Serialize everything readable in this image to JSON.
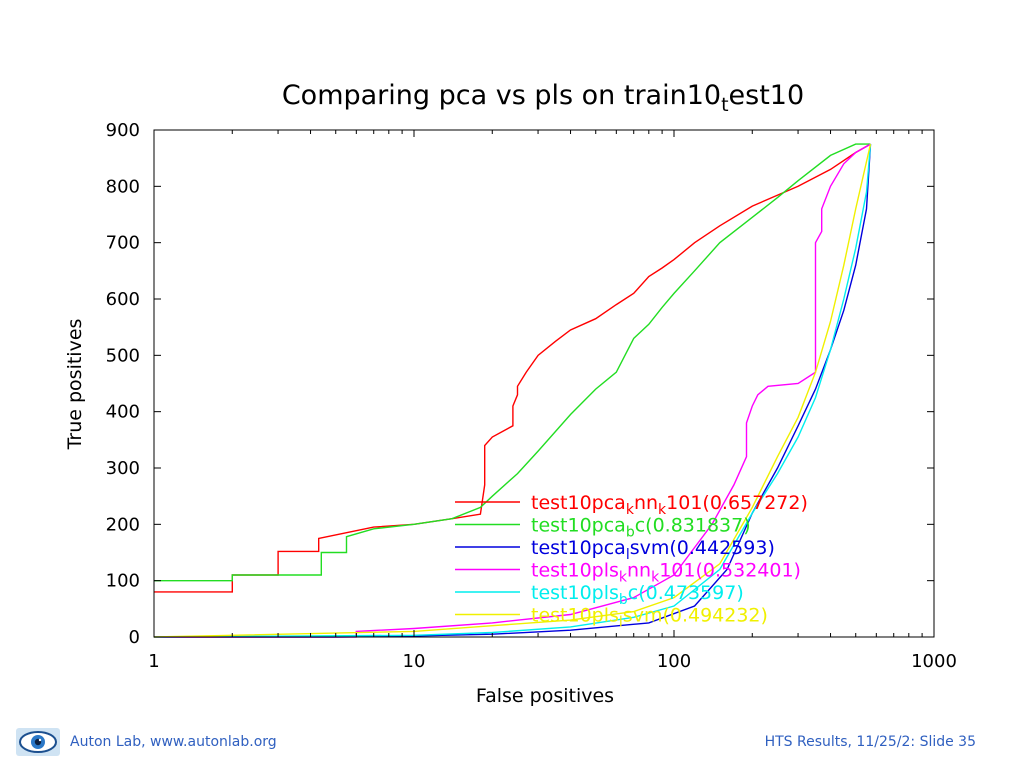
{
  "footer": {
    "left_text": "Auton Lab, www.autonlab.org",
    "right_text": "HTS Results, 11/25/2: Slide 35",
    "logo_icon": "eye-logo-icon"
  },
  "colors": {
    "red": "#ff0000",
    "green": "#22dd22",
    "blue": "#0000dd",
    "magenta": "#ff00ff",
    "cyan": "#00eeee",
    "yellow": "#f0f000",
    "footer_text": "#3060c0"
  },
  "chart_data": {
    "type": "line",
    "title": "Comparing pca vs pls on train10",
    "title_sub": "t",
    "title_suffix": "est10",
    "xlabel": "False positives",
    "ylabel": "True positives",
    "xscale": "log",
    "xlim": [
      1,
      1000
    ],
    "ylim": [
      0,
      900
    ],
    "xticks": [
      "1",
      "10",
      "100",
      "1000"
    ],
    "yticks": [
      "0",
      "100",
      "200",
      "300",
      "400",
      "500",
      "600",
      "700",
      "800",
      "900"
    ],
    "grid": false,
    "legend_position": "lower-center",
    "series": [
      {
        "name": "test10pcaknnk101(0.657272)",
        "label_parts": [
          [
            "test10pca",
            ""
          ],
          [
            "k",
            "sub"
          ],
          [
            "nn",
            ""
          ],
          [
            "k",
            "sub"
          ],
          [
            "101(0.657272)",
            ""
          ]
        ],
        "color": "#ff0000",
        "x": [
          1,
          2,
          2,
          3,
          3,
          4.3,
          4.3,
          7,
          10,
          14,
          18,
          18.7,
          18.7,
          20,
          24,
          24,
          25,
          25,
          27,
          30,
          35,
          40,
          50,
          60,
          70,
          80,
          90,
          100,
          120,
          150,
          200,
          300,
          400,
          500,
          570
        ],
        "y": [
          80,
          80,
          110,
          110,
          152,
          152,
          175,
          195,
          200,
          210,
          218,
          270,
          340,
          355,
          375,
          410,
          430,
          445,
          470,
          500,
          525,
          545,
          565,
          590,
          610,
          640,
          655,
          670,
          700,
          730,
          765,
          800,
          830,
          860,
          875
        ]
      },
      {
        "name": "test10pcabc(0.831837)",
        "label_parts": [
          [
            "test10pca",
            ""
          ],
          [
            "b",
            "sub"
          ],
          [
            "c(0.831837)",
            ""
          ]
        ],
        "color": "#22dd22",
        "x": [
          1,
          2,
          2,
          4.4,
          4.4,
          5.5,
          5.5,
          7,
          10,
          14,
          18,
          20,
          25,
          30,
          40,
          50,
          60,
          70,
          80,
          90,
          100,
          120,
          150,
          200,
          250,
          300,
          400,
          500,
          570
        ],
        "y": [
          100,
          100,
          110,
          110,
          150,
          150,
          178,
          192,
          200,
          210,
          230,
          250,
          290,
          330,
          395,
          440,
          470,
          530,
          555,
          585,
          610,
          650,
          700,
          745,
          780,
          810,
          855,
          875,
          875
        ]
      },
      {
        "name": "test10pcalsvm(0.442593)",
        "label_parts": [
          [
            "test10pca",
            ""
          ],
          [
            "l",
            "sub"
          ],
          [
            "svm(0.442593)",
            ""
          ]
        ],
        "color": "#0000dd",
        "x": [
          1,
          5,
          10,
          20,
          40,
          80,
          120,
          160,
          200,
          250,
          300,
          350,
          400,
          450,
          500,
          550,
          570
        ],
        "y": [
          0,
          0,
          2,
          5,
          12,
          25,
          55,
          120,
          220,
          300,
          375,
          440,
          510,
          580,
          660,
          760,
          875
        ]
      },
      {
        "name": "test10plsknnk101(0.532401)",
        "label_parts": [
          [
            "test10pls",
            ""
          ],
          [
            "k",
            "sub"
          ],
          [
            "nn",
            ""
          ],
          [
            "k",
            "sub"
          ],
          [
            "101(0.532401)",
            ""
          ]
        ],
        "color": "#ff00ff",
        "x": [
          1,
          6,
          6,
          10,
          20,
          40,
          70,
          100,
          140,
          170,
          190,
          190,
          200,
          210,
          230,
          300,
          350,
          350,
          370,
          370,
          400,
          450,
          500,
          570
        ],
        "y": [
          0,
          0,
          10,
          15,
          25,
          40,
          70,
          110,
          200,
          270,
          320,
          380,
          410,
          430,
          445,
          450,
          470,
          700,
          720,
          760,
          800,
          840,
          860,
          875
        ]
      },
      {
        "name": "test10plsbc(0.473597)",
        "label_parts": [
          [
            "test10pls",
            ""
          ],
          [
            "b",
            "sub"
          ],
          [
            "c(0.473597)",
            ""
          ]
        ],
        "color": "#00eeee",
        "x": [
          1,
          10,
          20,
          40,
          70,
          100,
          150,
          200,
          250,
          300,
          350,
          400,
          450,
          500,
          550,
          570
        ],
        "y": [
          0,
          3,
          8,
          18,
          35,
          55,
          120,
          220,
          290,
          355,
          425,
          510,
          600,
          690,
          790,
          875
        ]
      },
      {
        "name": "test10plslsvm(0.494232)",
        "label_parts": [
          [
            "test10pls",
            ""
          ],
          [
            "l",
            "sub"
          ],
          [
            "svm(0.494232)",
            ""
          ]
        ],
        "color": "#f0f000",
        "x": [
          1,
          10,
          20,
          40,
          70,
          100,
          150,
          200,
          250,
          300,
          350,
          400,
          450,
          500,
          570
        ],
        "y": [
          0,
          10,
          20,
          30,
          45,
          70,
          130,
          230,
          320,
          390,
          470,
          560,
          660,
          760,
          875
        ]
      }
    ]
  }
}
